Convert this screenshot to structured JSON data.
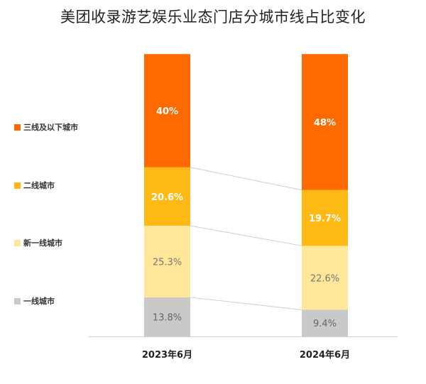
{
  "chart_data": {
    "type": "bar",
    "stacked": true,
    "title": "美团收录游艺娱乐业态门店分城市线占比变化",
    "categories": [
      "2023年6月",
      "2024年6月"
    ],
    "ylim": [
      0,
      100
    ],
    "unit": "%",
    "grid": false,
    "legend_placement": "left",
    "series": [
      {
        "name": "一线城市",
        "values": [
          13.8,
          9.4
        ],
        "labels": [
          "13.8%",
          "9.4%"
        ],
        "color": "#C9C9C9",
        "label_color": "#666666"
      },
      {
        "name": "新一线城市",
        "values": [
          25.3,
          22.6
        ],
        "labels": [
          "25.3%",
          "22.6%"
        ],
        "color": "#FFE699",
        "label_color": "#777777"
      },
      {
        "name": "二线城市",
        "values": [
          20.6,
          19.7
        ],
        "labels": [
          "20.6%",
          "19.7%"
        ],
        "color": "#FFB914",
        "label_color": "#FFFFFF"
      },
      {
        "name": "三线及以下城市",
        "values": [
          40,
          48
        ],
        "labels": [
          "40%",
          "48%"
        ],
        "color": "#FF6A00",
        "label_color": "#FFFFFF"
      }
    ]
  }
}
